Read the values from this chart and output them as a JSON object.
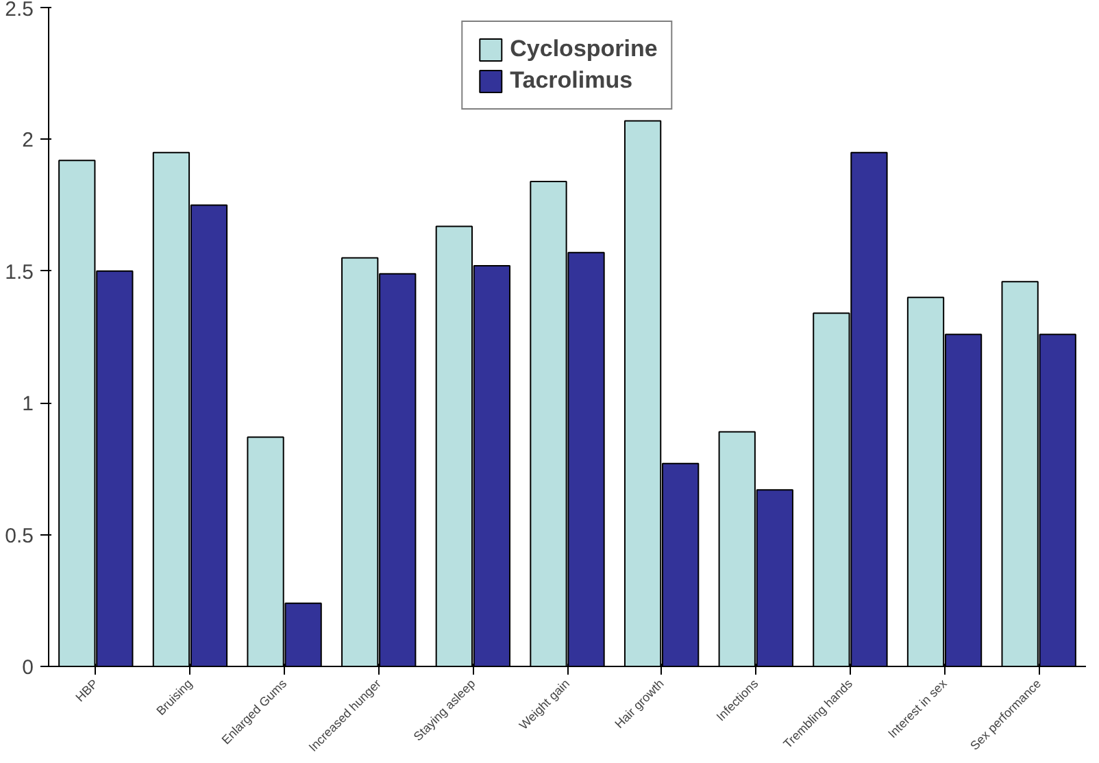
{
  "chart_data": {
    "type": "bar",
    "categories": [
      "HBP",
      "Bruising",
      "Enlarged Gums",
      "Increased hunger",
      "Staying asleep",
      "Weight gain",
      "Hair growth",
      "Infections",
      "Trembling hands",
      "Interest in sex",
      "Sex performance"
    ],
    "series": [
      {
        "name": "Cyclosporine",
        "color": "#b8e0e0",
        "values": [
          1.92,
          1.95,
          0.87,
          1.55,
          1.67,
          1.84,
          2.07,
          0.89,
          1.34,
          1.4,
          1.46
        ]
      },
      {
        "name": "Tacrolimus",
        "color": "#333399",
        "values": [
          1.5,
          1.75,
          0.24,
          1.49,
          1.52,
          1.57,
          0.77,
          0.67,
          1.95,
          1.26,
          1.26
        ]
      }
    ],
    "ylim": [
      0,
      2.5
    ],
    "yticks": [
      0,
      0.5,
      1,
      1.5,
      2,
      2.5
    ],
    "grid": false,
    "legend": "top"
  }
}
